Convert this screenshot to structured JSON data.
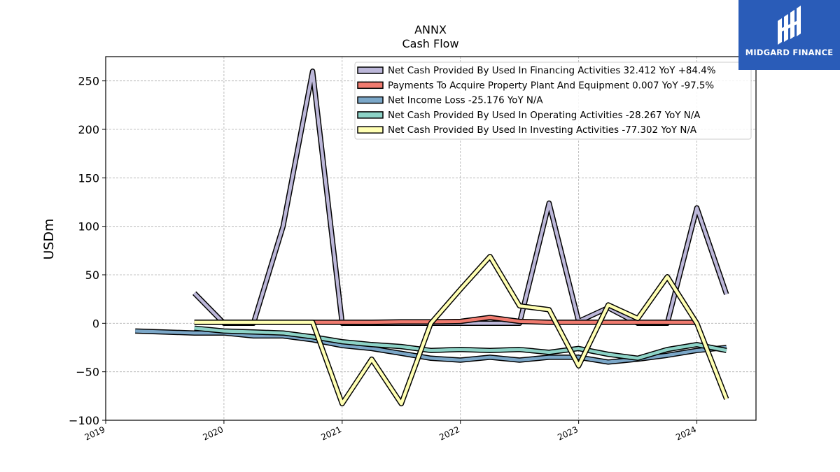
{
  "chart_data": {
    "type": "line",
    "title": "ANNX",
    "subtitle": "Cash Flow",
    "ylabel": "USDm",
    "xlabel": "",
    "ylim": [
      -100,
      275
    ],
    "xlim": [
      2019.0,
      2024.5
    ],
    "yticks": [
      -100,
      -50,
      0,
      50,
      100,
      150,
      200,
      250
    ],
    "yticklabels": [
      "−100",
      "−50",
      "0",
      "50",
      "100",
      "150",
      "200",
      "250"
    ],
    "xticks": [
      2019,
      2020,
      2021,
      2022,
      2023,
      2024
    ],
    "xticklabels": [
      "2019",
      "2020",
      "2021",
      "2022",
      "2023",
      "2024"
    ],
    "grid": true,
    "legend_position": "top-right",
    "series": [
      {
        "name": "Net Cash Provided By Used In Financing Activities  32.412 YoY +84.4%",
        "color": "#bcb7d9",
        "x": [
          2019.75,
          2020.0,
          2020.25,
          2020.5,
          2020.75,
          2021.0,
          2021.25,
          2021.5,
          2021.75,
          2022.0,
          2022.25,
          2022.5,
          2022.75,
          2023.0,
          2023.25,
          2023.5,
          2023.75,
          2024.0,
          2024.25
        ],
        "y": [
          31,
          0,
          0,
          100,
          260,
          0,
          0,
          0,
          0,
          0,
          0,
          0,
          124,
          2,
          16,
          0,
          0,
          119,
          30
        ]
      },
      {
        "name": "Payments To Acquire Property Plant And Equipment  0.007 YoY -97.5%",
        "color": "#f07b6f",
        "x": [
          2019.75,
          2020.0,
          2020.25,
          2020.5,
          2020.75,
          2021.0,
          2021.25,
          2021.5,
          2021.75,
          2022.0,
          2022.25,
          2022.5,
          2022.75,
          2023.0,
          2023.25,
          2023.5,
          2023.75,
          2024.0
        ],
        "y": [
          1,
          1,
          1,
          1,
          1,
          1,
          1,
          1.5,
          1.5,
          2,
          6,
          2,
          1,
          1,
          1,
          1,
          1,
          1
        ]
      },
      {
        "name": "Net Income Loss  -25.176 YoY N/A",
        "color": "#7ba7c8",
        "x": [
          2019.25,
          2019.75,
          2020.0,
          2020.25,
          2020.5,
          2020.75,
          2021.0,
          2021.25,
          2021.5,
          2021.75,
          2022.0,
          2022.25,
          2022.5,
          2022.75,
          2023.0,
          2023.25,
          2023.5,
          2023.75,
          2024.0,
          2024.25
        ],
        "y": [
          -8,
          -10,
          -10,
          -13,
          -13,
          -17,
          -23,
          -26,
          -31,
          -36,
          -38,
          -35,
          -38,
          -35,
          -35,
          -40,
          -37,
          -33,
          -28,
          -25
        ]
      },
      {
        "name": "Net Cash Provided By Used In Operating Activities  -28.267 YoY N/A",
        "color": "#8dd3c7",
        "x": [
          2019.75,
          2020.0,
          2020.25,
          2020.5,
          2020.75,
          2021.0,
          2021.25,
          2021.5,
          2021.75,
          2022.0,
          2022.25,
          2022.5,
          2022.75,
          2023.0,
          2023.25,
          2023.5,
          2023.75,
          2024.0,
          2024.25
        ],
        "y": [
          -5,
          -8,
          -9,
          -10,
          -14,
          -19,
          -22,
          -24,
          -28,
          -27,
          -28,
          -27,
          -30,
          -26,
          -32,
          -36,
          -27,
          -22,
          -28
        ]
      },
      {
        "name": "Net Cash Provided By Used In Investing Activities  -77.302 YoY N/A",
        "color": "#ffffb3",
        "x": [
          2019.75,
          2020.0,
          2020.25,
          2020.5,
          2020.75,
          2021.0,
          2021.25,
          2021.5,
          2021.75,
          2022.0,
          2022.25,
          2022.5,
          2022.75,
          2023.0,
          2023.25,
          2023.5,
          2023.75,
          2024.0,
          2024.25
        ],
        "y": [
          1,
          1,
          1,
          1,
          1,
          -83,
          -37,
          -83,
          0,
          35,
          69,
          18,
          14,
          -44,
          19,
          5,
          48,
          0,
          -78
        ]
      }
    ]
  },
  "logo": {
    "text": "MIDGARD FINANCE",
    "background": "#2a5cb8"
  }
}
